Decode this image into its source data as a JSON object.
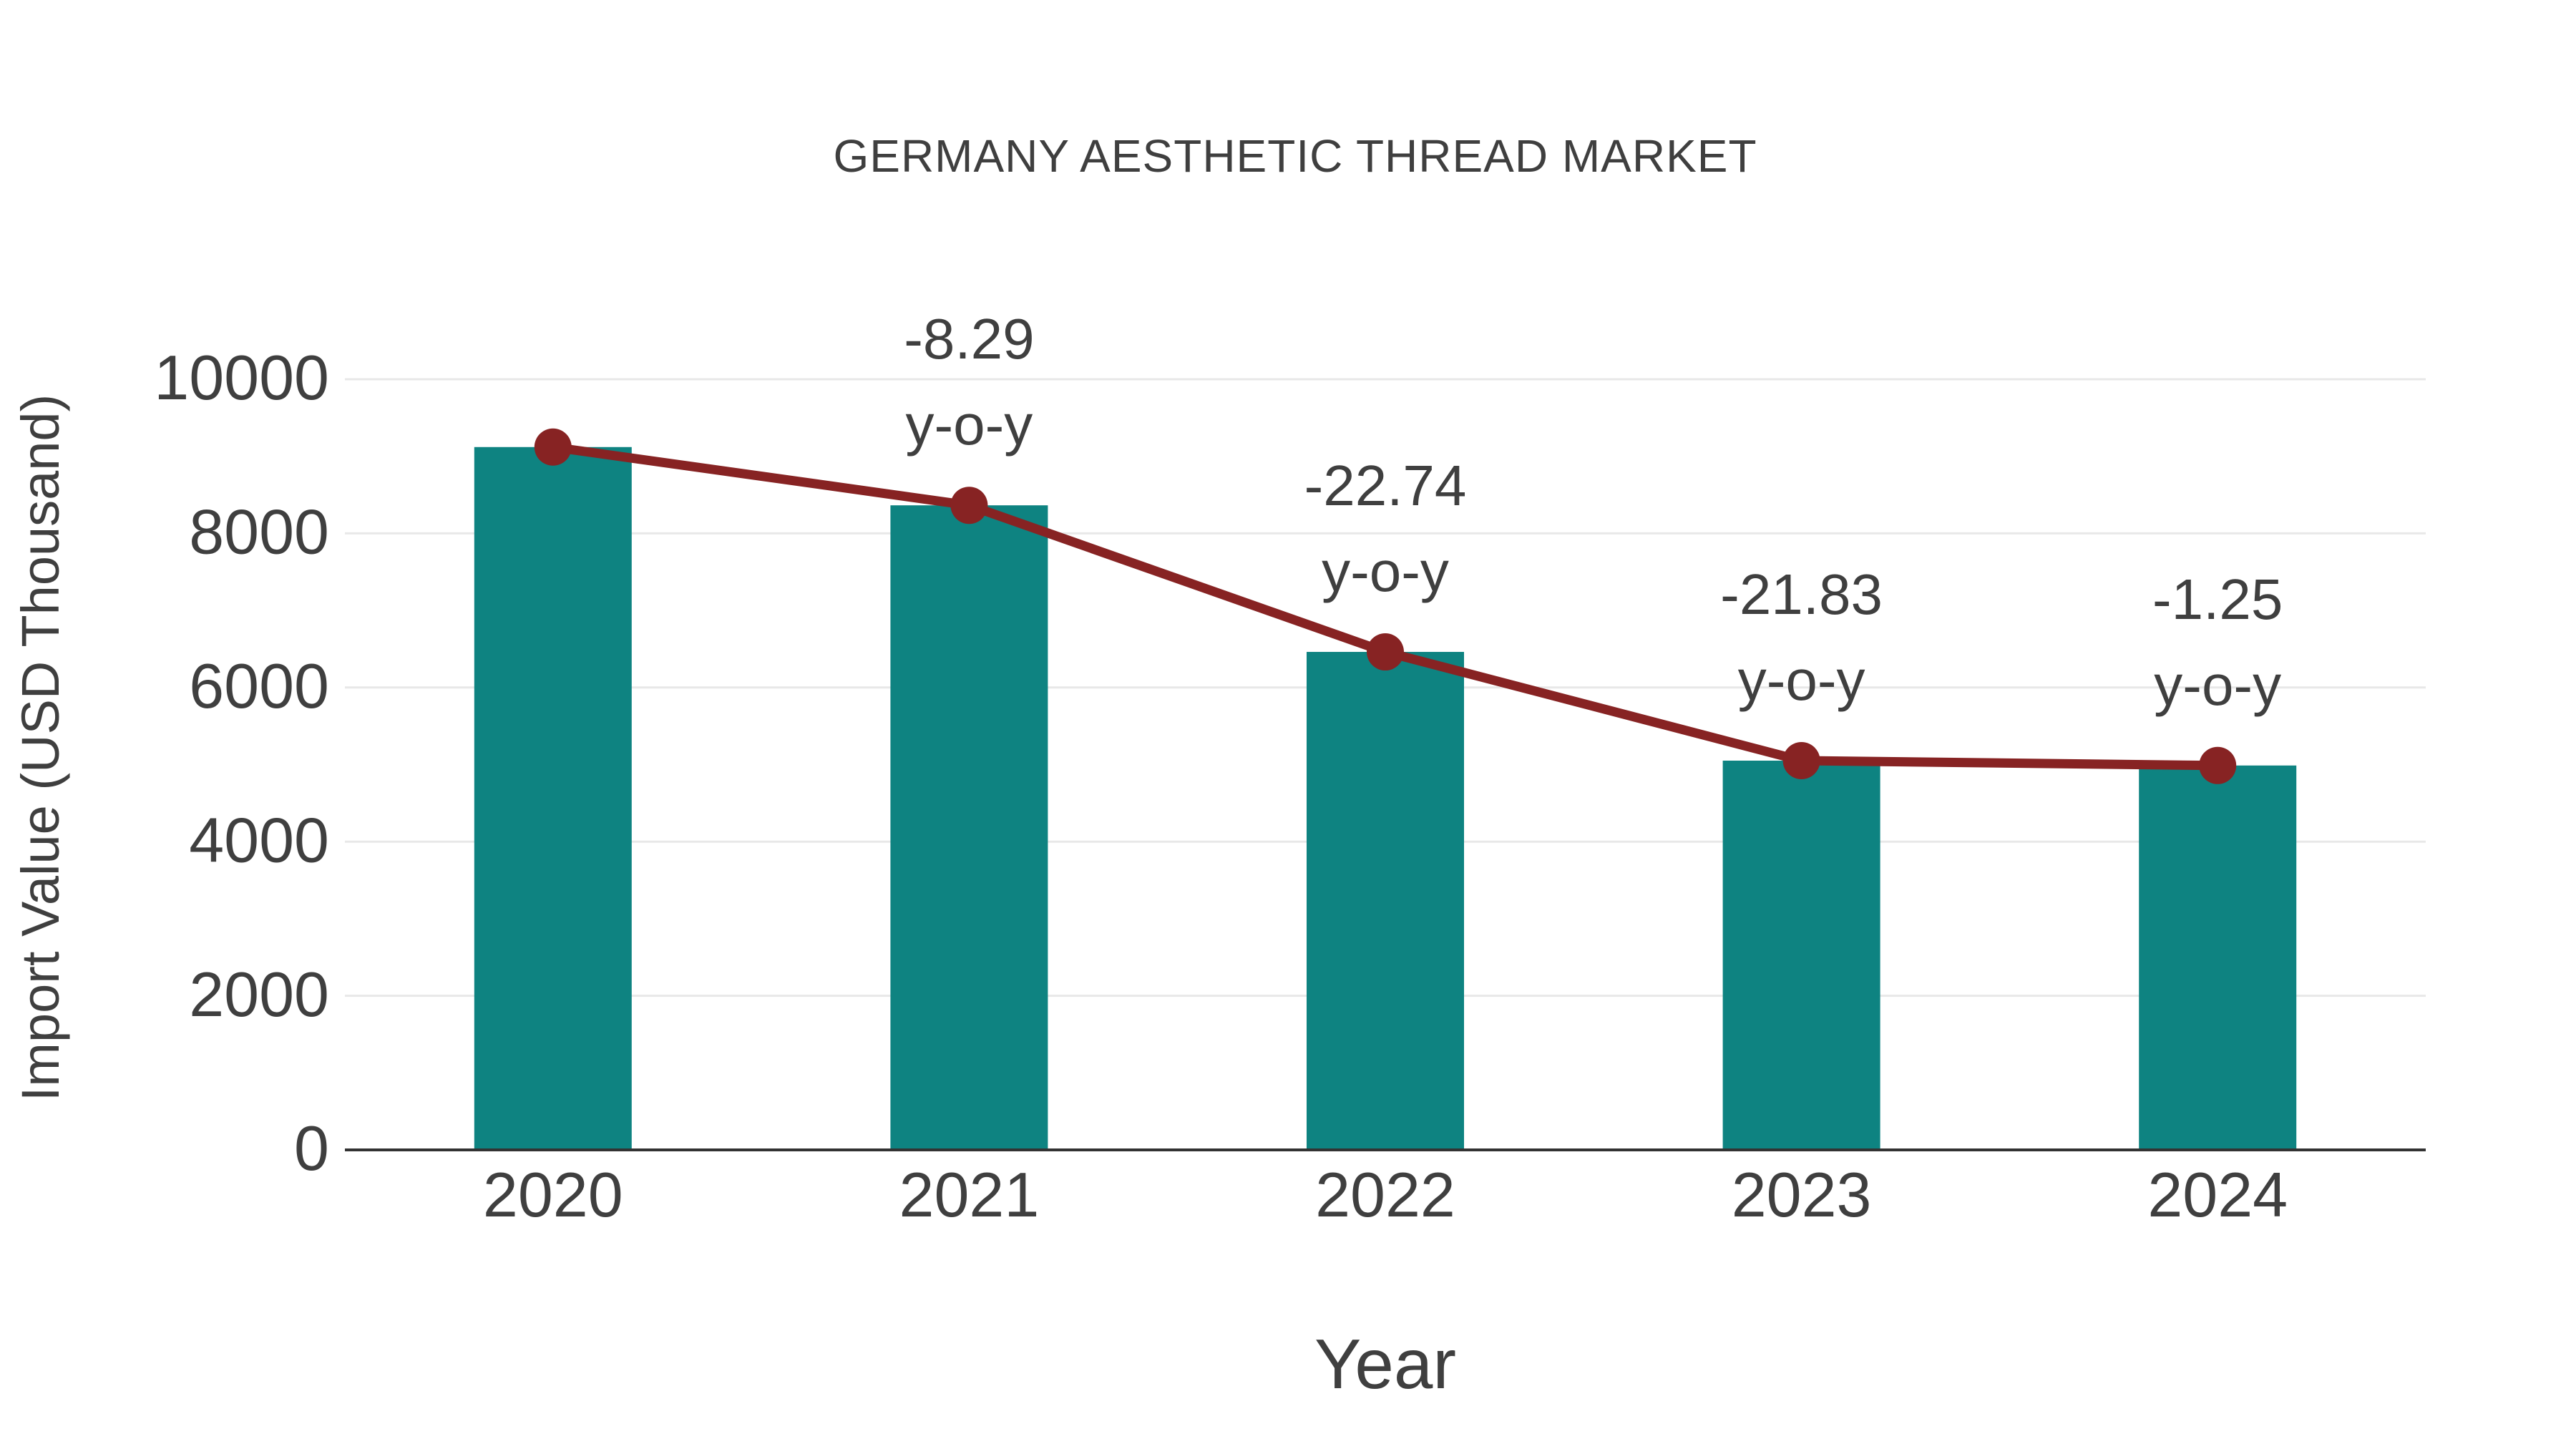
{
  "chart_data": {
    "type": "bar",
    "title": "GERMANY AESTHETIC THREAD MARKET",
    "xlabel": "Year",
    "ylabel": "Import Value (USD Thousand)",
    "categories": [
      "2020",
      "2021",
      "2022",
      "2023",
      "2024"
    ],
    "series": [
      {
        "name": "Import Value bars",
        "type": "bar",
        "values": [
          9120,
          8364,
          6462,
          5051,
          4988
        ]
      },
      {
        "name": "Import Value trend",
        "type": "line",
        "values": [
          9120,
          8364,
          6462,
          5051,
          4988
        ]
      }
    ],
    "annotations": [
      {
        "category": "2021",
        "value_line": "-8.29",
        "unit_line": "y-o-y"
      },
      {
        "category": "2022",
        "value_line": "-22.74",
        "unit_line": "y-o-y"
      },
      {
        "category": "2023",
        "value_line": "-21.83",
        "unit_line": "y-o-y"
      },
      {
        "category": "2024",
        "value_line": "-1.25",
        "unit_line": "y-o-y"
      }
    ],
    "yticks": [
      0,
      2000,
      4000,
      6000,
      8000,
      10000
    ],
    "ylim": [
      0,
      10000
    ],
    "grid": true,
    "legend": false,
    "colors": {
      "bar": "#0e8381",
      "line": "#872323",
      "text": "#3f3f3f",
      "grid": "#e8e8e8",
      "axis": "#333333",
      "background": "#ffffff"
    }
  }
}
